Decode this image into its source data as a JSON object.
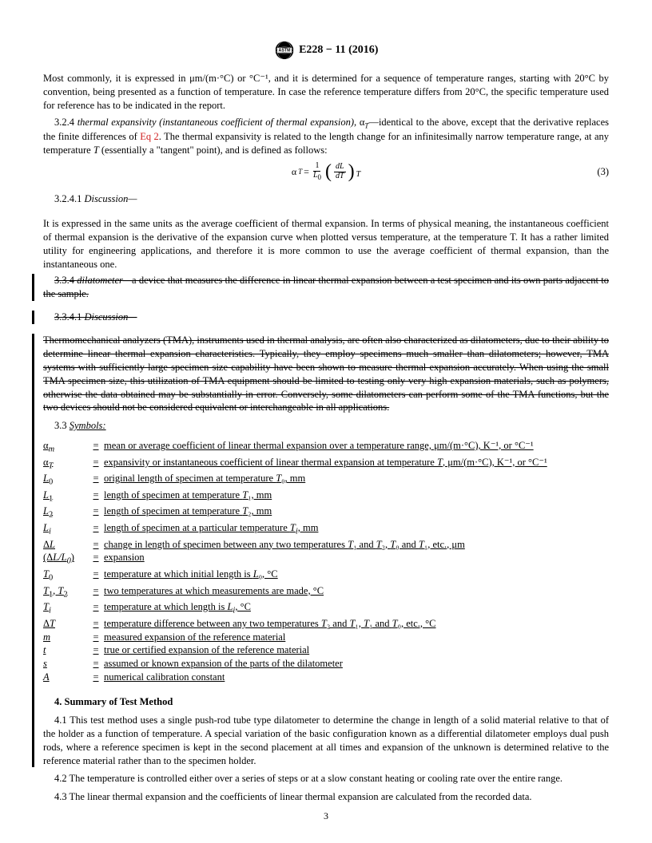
{
  "header": {
    "title": "E228 − 11 (2016)"
  },
  "p_intro": "Most commonly, it is expressed in μm/(m·°C) or °C⁻¹, and it is determined for a sequence of temperature ranges, starting with 20°C by convention, being presented as a function of temperature. In case the reference temperature differs from 20°C, the specific temperature used for reference has to be indicated in the report.",
  "p_324a": "3.2.4 ",
  "p_324b": "thermal expansivity (instantaneous coefficient of thermal expansion), ",
  "p_324b2": "α",
  "p_324b3": "T",
  "p_324c": "—identical to the above, except that the derivative replaces the finite differences of ",
  "p_324_link": "Eq 2",
  "p_324d": ". The thermal expansivity is related to the length change for an infinitesimally narrow temperature range, at any temperature ",
  "p_324e": "T",
  "p_324f": " (essentially a \"tangent\" point), and is defined as follows:",
  "eq": {
    "alpha": "α",
    "subT": "T",
    "eq": " = ",
    "num1": "1",
    "den1": "L",
    "den1sub": "0",
    "num2": "dL",
    "den2": "dT",
    "trail": "T",
    "label": "(3)"
  },
  "p_3241": "3.2.4.1 ",
  "p_3241b": "Discussion—",
  "p_disc": "It is expressed in the same units as the average coefficient of thermal expansion. In terms of physical meaning, the instantaneous coefficient of thermal expansion is the derivative of the expansion curve when plotted versus temperature, at the temperature T. It has a rather limited utility for engineering applications, and therefore it is more common to use the average coefficient of thermal expansion, than the instantaneous one.",
  "p_334a": "3.3.4 ",
  "p_334b": "dilatometer—",
  "p_334c": "a device that measures the difference in linear thermal expansion between a test specimen and its own parts adjacent to the sample.",
  "p_3341a": "3.3.4.1 ",
  "p_3341b": "Discussion—",
  "p_tma": "Thermomechanical analyzers (TMA), instruments used in thermal analysis, are often also characterized as dilatometers, due to their ability to determine linear thermal expansion characteristics. Typically, they employ specimens much smaller than dilatometers; however, TMA systems with sufficiently large specimen size capability have been shown to measure thermal expansion accurately. When using the small TMA specimen size, this utilization of TMA equipment should be limited to testing only very high expansion materials, such as polymers, otherwise the data obtained may be substantially in error. Conversely, some dilatometers can perform some of the TMA functions, but the two devices should not be considered equivalent or interchangeable in all applications.",
  "p_33": "3.3 ",
  "p_33b": "Symbols:",
  "symbols": [
    {
      "s": "α<sub style='font-style:italic'>m</sub>",
      "d": "mean or average coefficient of linear thermal expansion over a temperature range, μm/(m·°C), K⁻¹, or °C⁻¹"
    },
    {
      "s": "α<sub style='font-style:italic'>T</sub>",
      "d": "expansivity or instantaneous coefficient of linear thermal expansion at temperature <i>T</i>, μm/(m·°C), K⁻¹, or °C⁻¹"
    },
    {
      "s": "<i>L</i><sub>0</sub>",
      "d": "original length of specimen at temperature <i>T</i>₀, mm"
    },
    {
      "s": "<i>L</i><sub>1</sub>",
      "d": "length of specimen at temperature <i>T</i>₁, mm"
    },
    {
      "s": "<i>L</i><sub>2</sub>",
      "d": "length of specimen at temperature <i>T</i>₂, mm"
    },
    {
      "s": "<i>L<sub>i</sub></i>",
      "d": "length of specimen at a particular temperature <i>T<sub>i</sub></i>, mm"
    },
    {
      "s": "Δ<i>L</i>",
      "d": "change in length of specimen between any two temperatures <i>T</i>₁ and <i>T</i>₂, <i>T</i>₀ and <i>T</i>₁, etc., μm"
    },
    {
      "s": "(Δ<i>L/L<sub>0</sub></i>)",
      "d": "expansion"
    },
    {
      "s": "<i>T</i><sub>0</sub>",
      "d": "temperature at which initial length is <i>L</i>₀, °C"
    },
    {
      "s": "<i>T</i><sub>1</sub>, <i>T</i><sub>2</sub>",
      "d": "two temperatures at which measurements are made, °C"
    },
    {
      "s": "<i>T<sub>i</sub></i>",
      "d": "temperature at which length is <i>L<sub>i</sub></i>, °C"
    },
    {
      "s": "Δ<i>T</i>",
      "d": "temperature difference between any two temperatures <i>T</i>₂ and <i>T</i>₁, <i>T</i>₁ and <i>T</i>₀, etc., °C"
    },
    {
      "s": "<i>m</i>",
      "d": "measured expansion of the reference material"
    },
    {
      "s": "<i>t</i>",
      "d": "true or certified expansion of the reference material"
    },
    {
      "s": "<i>s</i>",
      "d": "assumed or known expansion of the parts of the dilatometer"
    },
    {
      "s": "<i>A</i>",
      "d": "numerical calibration constant"
    }
  ],
  "sec4_title": "4. Summary of Test Method",
  "p_41a": "4.1 ",
  "p_41b": "This test method uses a single push-rod tube type dilatometer to determine the change in length of a solid material relative to that of the holder as a function of temperature. A special variation of the basic configuration known as a differential dilatometer employs dual push rods, where a reference specimen is kept in the second placement at all times and expansion of the unknown is determined relative to the reference material rather than to the specimen holder.",
  "p_42a": "4.2 ",
  "p_42b": "The temperature is controlled either over a series of steps or at a slow constant heating or cooling rate over the entire range.",
  "p_43a": "4.3 ",
  "p_43b": "The linear thermal expansion and the coefficients of linear thermal expansion are calculated from the recorded data.",
  "page_num": "3"
}
